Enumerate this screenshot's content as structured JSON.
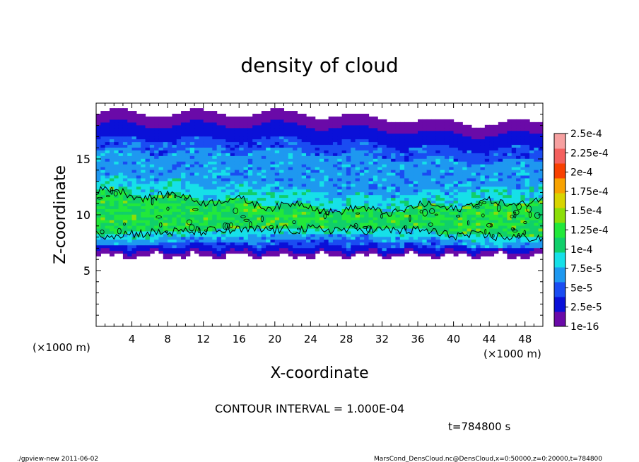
{
  "chart_data": {
    "type": "heatmap",
    "title": "density of cloud",
    "xlabel": "X-coordinate",
    "ylabel": "Z-coordinate",
    "x_unit": "(×1000 m)",
    "y_unit": "(×1000 m)",
    "xlim": [
      0,
      50
    ],
    "ylim": [
      0,
      20
    ],
    "x_ticks": [
      4,
      8,
      12,
      16,
      20,
      24,
      28,
      32,
      36,
      40,
      44,
      48
    ],
    "y_ticks": [
      5,
      10,
      15
    ],
    "colorbar": {
      "labels": [
        "1e-16",
        "2.5e-5",
        "5e-5",
        "7.5e-5",
        "1e-4",
        "1.25e-4",
        "1.5e-4",
        "1.75e-4",
        "2e-4",
        "2.25e-4",
        "2.5e-4"
      ],
      "colors": [
        "#6a0aa8",
        "#0a10d8",
        "#1a4cf2",
        "#1e98f0",
        "#16e0e8",
        "#10cf6a",
        "#22e83a",
        "#8cde08",
        "#d8d400",
        "#f8a200",
        "#f84000",
        "#f4605e",
        "#f6a0a0"
      ]
    },
    "cloud_layer": {
      "z_bottom": 6.2,
      "z_top": 19.0,
      "dense_band_z": [
        8.2,
        12.3
      ],
      "dense_value": 0.00012
    },
    "contour_interval": "1.000E-04",
    "annotations": {
      "contour_label": "CONTOUR INTERVAL = 1.000E-04",
      "time": "t=784800 s",
      "footer_left": "./gpview-new  2011-06-02",
      "footer_right": "MarsCond_DensCloud.nc@DensCloud,x=0:50000,z=0:20000,t=784800"
    }
  }
}
